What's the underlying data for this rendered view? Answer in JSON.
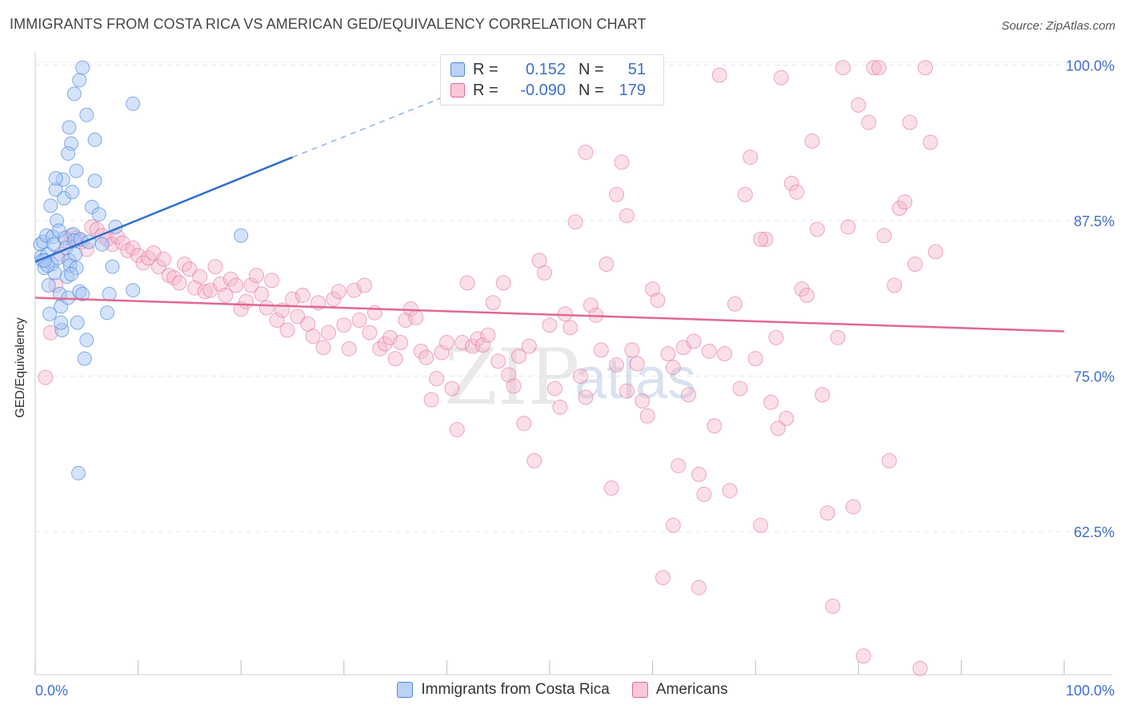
{
  "header": {
    "title": "IMMIGRANTS FROM COSTA RICA VS AMERICAN GED/EQUIVALENCY CORRELATION CHART",
    "source": "Source: ZipAtlas.com"
  },
  "legend": {
    "r_label": "R =",
    "n_label": "N =",
    "rows": [
      {
        "r": "0.152",
        "n": "51"
      },
      {
        "r": "-0.090",
        "n": "179"
      }
    ]
  },
  "watermark": {
    "zip": "ZIP",
    "atlas": "atlas"
  },
  "colors": {
    "blue": "#4a86d9",
    "blue_fill": "#a9c8f3",
    "pink": "#e2688f",
    "pink_fill": "#f5b9ce",
    "tick_label": "#3d6fcf",
    "grid": "#e6e6e6"
  },
  "chart_data": {
    "type": "scatter",
    "title": "IMMIGRANTS FROM COSTA RICA VS AMERICAN GED/EQUIVALENCY CORRELATION CHART",
    "ylabel": "GED/Equivalency",
    "xlabel": "",
    "xlim": [
      0,
      100
    ],
    "ylim": [
      51,
      101
    ],
    "x_tick_labels": [
      "0.0%",
      "100.0%"
    ],
    "y_ticks": [
      62.5,
      75.0,
      87.5,
      100.0
    ],
    "y_tick_labels": [
      "62.5%",
      "75.0%",
      "87.5%",
      "100.0%"
    ],
    "grid": true,
    "legend_position": "bottom",
    "series": [
      {
        "name": "Immigrants from Costa Rica",
        "r": 0.152,
        "n": 51,
        "trend": {
          "x0": 0,
          "y0": 84.2,
          "x1": 25,
          "y1": 92.6,
          "dashed_to_x": 42,
          "dashed_to_y": 98.2
        },
        "points": [
          [
            0.5,
            85.6
          ],
          [
            0.6,
            84.6
          ],
          [
            0.7,
            84.3
          ],
          [
            0.9,
            83.7
          ],
          [
            0.8,
            85.8
          ],
          [
            1.1,
            86.3
          ],
          [
            1.2,
            84.8
          ],
          [
            1.3,
            82.3
          ],
          [
            1.4,
            80.0
          ],
          [
            1.5,
            88.7
          ],
          [
            1.6,
            84.0
          ],
          [
            1.7,
            86.2
          ],
          [
            1.8,
            85.6
          ],
          [
            1.9,
            83.3
          ],
          [
            2.0,
            90.0
          ],
          [
            2.1,
            87.5
          ],
          [
            2.2,
            84.5
          ],
          [
            2.3,
            86.7
          ],
          [
            2.4,
            81.6
          ],
          [
            2.5,
            80.6
          ],
          [
            2.6,
            78.7
          ],
          [
            2.7,
            90.8
          ],
          [
            2.8,
            89.3
          ],
          [
            2.9,
            86.1
          ],
          [
            3.0,
            85.3
          ],
          [
            3.1,
            83.0
          ],
          [
            3.2,
            81.3
          ],
          [
            3.3,
            84.3
          ],
          [
            3.4,
            83.9
          ],
          [
            3.5,
            93.7
          ],
          [
            3.6,
            89.8
          ],
          [
            3.7,
            86.4
          ],
          [
            3.8,
            85.9
          ],
          [
            3.9,
            84.8
          ],
          [
            4.0,
            83.7
          ],
          [
            4.1,
            79.3
          ],
          [
            4.2,
            67.2
          ],
          [
            4.3,
            81.8
          ],
          [
            4.4,
            86.0
          ],
          [
            4.6,
            81.6
          ],
          [
            4.8,
            76.4
          ],
          [
            5.0,
            77.9
          ],
          [
            5.2,
            85.8
          ],
          [
            5.5,
            88.6
          ],
          [
            5.8,
            90.7
          ],
          [
            6.2,
            88.0
          ],
          [
            6.5,
            85.6
          ],
          [
            7.0,
            80.1
          ],
          [
            7.2,
            81.6
          ],
          [
            7.5,
            83.8
          ],
          [
            7.8,
            87.0
          ],
          [
            3.3,
            95.0
          ],
          [
            3.8,
            97.7
          ],
          [
            4.3,
            98.8
          ],
          [
            4.6,
            99.8
          ],
          [
            5.0,
            96.0
          ],
          [
            5.8,
            94.0
          ],
          [
            3.2,
            92.9
          ],
          [
            4.0,
            91.5
          ],
          [
            2.0,
            90.9
          ],
          [
            9.5,
            96.9
          ],
          [
            9.5,
            81.9
          ],
          [
            20.0,
            86.3
          ],
          [
            2.5,
            79.3
          ],
          [
            3.5,
            83.2
          ],
          [
            1.2,
            83.9
          ],
          [
            0.9,
            84.3
          ]
        ]
      },
      {
        "name": "Americans",
        "r": -0.09,
        "n": 179,
        "trend": {
          "x0": 0,
          "y0": 81.3,
          "x1": 100,
          "y1": 78.6
        },
        "points": [
          [
            1,
            74.9
          ],
          [
            1.5,
            78.5
          ],
          [
            2,
            82.3
          ],
          [
            2.5,
            84.8
          ],
          [
            3,
            85.9
          ],
          [
            3.5,
            86.3
          ],
          [
            4,
            86.1
          ],
          [
            4.5,
            85.8
          ],
          [
            5,
            85.2
          ],
          [
            5.5,
            87.0
          ],
          [
            6,
            86.8
          ],
          [
            6.5,
            86.3
          ],
          [
            7,
            86.0
          ],
          [
            7.5,
            85.6
          ],
          [
            8,
            86.2
          ],
          [
            8.5,
            85.7
          ],
          [
            9,
            85.1
          ],
          [
            9.5,
            85.3
          ],
          [
            10,
            84.7
          ],
          [
            10.5,
            84.1
          ],
          [
            11,
            84.5
          ],
          [
            11.5,
            84.9
          ],
          [
            12,
            83.8
          ],
          [
            12.5,
            84.4
          ],
          [
            13,
            83.1
          ],
          [
            13.5,
            82.9
          ],
          [
            14,
            82.5
          ],
          [
            14.5,
            84.0
          ],
          [
            15,
            83.6
          ],
          [
            15.5,
            82.1
          ],
          [
            16,
            83.0
          ],
          [
            16.5,
            81.8
          ],
          [
            17,
            81.9
          ],
          [
            17.5,
            83.8
          ],
          [
            18,
            82.4
          ],
          [
            18.5,
            81.5
          ],
          [
            19,
            82.8
          ],
          [
            19.5,
            82.3
          ],
          [
            20,
            80.4
          ],
          [
            20.5,
            81.0
          ],
          [
            21,
            82.3
          ],
          [
            21.5,
            83.1
          ],
          [
            22,
            81.6
          ],
          [
            22.5,
            80.5
          ],
          [
            23,
            82.7
          ],
          [
            23.5,
            79.5
          ],
          [
            24,
            80.3
          ],
          [
            24.5,
            78.7
          ],
          [
            25,
            81.2
          ],
          [
            25.5,
            79.8
          ],
          [
            26,
            81.5
          ],
          [
            26.5,
            79.2
          ],
          [
            27,
            78.2
          ],
          [
            27.5,
            80.9
          ],
          [
            28,
            77.3
          ],
          [
            28.5,
            78.5
          ],
          [
            29,
            81.2
          ],
          [
            29.5,
            81.8
          ],
          [
            30,
            79.1
          ],
          [
            30.5,
            77.2
          ],
          [
            31,
            81.9
          ],
          [
            31.5,
            79.5
          ],
          [
            32,
            82.3
          ],
          [
            32.5,
            78.5
          ],
          [
            33,
            80.1
          ],
          [
            33.5,
            77.2
          ],
          [
            34,
            77.6
          ],
          [
            34.5,
            78.1
          ],
          [
            35,
            76.4
          ],
          [
            35.5,
            77.7
          ],
          [
            36,
            79.5
          ],
          [
            36.5,
            80.4
          ],
          [
            37,
            79.7
          ],
          [
            37.5,
            77.0
          ],
          [
            38,
            76.5
          ],
          [
            38.5,
            73.1
          ],
          [
            39,
            74.8
          ],
          [
            39.5,
            76.9
          ],
          [
            40,
            77.7
          ],
          [
            40.5,
            74.0
          ],
          [
            41,
            70.7
          ],
          [
            41.5,
            77.7
          ],
          [
            42,
            82.5
          ],
          [
            42.5,
            77.4
          ],
          [
            43,
            78.0
          ],
          [
            43.5,
            77.5
          ],
          [
            44,
            78.3
          ],
          [
            44.5,
            80.9
          ],
          [
            45,
            76.2
          ],
          [
            45.5,
            82.5
          ],
          [
            46,
            75.1
          ],
          [
            46.5,
            74.2
          ],
          [
            47,
            76.6
          ],
          [
            47.5,
            71.2
          ],
          [
            48,
            77.4
          ],
          [
            48.5,
            68.2
          ],
          [
            49,
            84.3
          ],
          [
            49.5,
            83.3
          ],
          [
            50,
            79.1
          ],
          [
            50.5,
            74.0
          ],
          [
            51,
            72.5
          ],
          [
            51.5,
            80.0
          ],
          [
            52,
            78.9
          ],
          [
            52.5,
            87.4
          ],
          [
            53,
            75.0
          ],
          [
            53.5,
            73.3
          ],
          [
            54,
            80.7
          ],
          [
            54.5,
            79.9
          ],
          [
            55,
            77.1
          ],
          [
            55.5,
            84.0
          ],
          [
            56,
            66.0
          ],
          [
            56.5,
            75.9
          ],
          [
            57,
            92.2
          ],
          [
            57.5,
            73.8
          ],
          [
            58,
            77.1
          ],
          [
            58.5,
            76.0
          ],
          [
            59,
            73.0
          ],
          [
            59.5,
            71.8
          ],
          [
            60,
            82.0
          ],
          [
            60.5,
            81.1
          ],
          [
            61,
            58.8
          ],
          [
            61.5,
            76.8
          ],
          [
            62,
            63.0
          ],
          [
            62.5,
            67.8
          ],
          [
            63,
            77.3
          ],
          [
            63.5,
            73.5
          ],
          [
            64,
            77.8
          ],
          [
            64.5,
            67.1
          ],
          [
            65,
            65.5
          ],
          [
            65.5,
            77.0
          ],
          [
            66,
            71.0
          ],
          [
            66.5,
            99.2
          ],
          [
            67,
            76.8
          ],
          [
            67.5,
            65.8
          ],
          [
            68,
            80.8
          ],
          [
            68.5,
            74.0
          ],
          [
            69,
            89.6
          ],
          [
            69.5,
            92.6
          ],
          [
            70,
            76.4
          ],
          [
            70.5,
            63.0
          ],
          [
            71,
            86.0
          ],
          [
            71.5,
            72.9
          ],
          [
            72,
            78.1
          ],
          [
            72.5,
            99.0
          ],
          [
            73,
            71.6
          ],
          [
            73.5,
            90.5
          ],
          [
            74,
            89.8
          ],
          [
            74.5,
            82.0
          ],
          [
            75,
            81.5
          ],
          [
            75.5,
            93.9
          ],
          [
            76,
            86.8
          ],
          [
            76.5,
            73.5
          ],
          [
            77,
            64.0
          ],
          [
            77.5,
            56.5
          ],
          [
            78,
            78.1
          ],
          [
            78.5,
            99.8
          ],
          [
            79,
            87.0
          ],
          [
            79.5,
            64.5
          ],
          [
            80,
            96.8
          ],
          [
            80.5,
            52.5
          ],
          [
            81,
            95.4
          ],
          [
            81.5,
            99.8
          ],
          [
            82,
            99.8
          ],
          [
            82.5,
            86.3
          ],
          [
            83,
            68.2
          ],
          [
            83.5,
            82.3
          ],
          [
            84,
            88.5
          ],
          [
            84.5,
            89.0
          ],
          [
            85,
            95.4
          ],
          [
            85.5,
            84.0
          ],
          [
            86,
            51.5
          ],
          [
            86.5,
            99.8
          ],
          [
            87,
            93.8
          ],
          [
            87.5,
            85.0
          ],
          [
            56.5,
            89.6
          ],
          [
            57.5,
            87.9
          ],
          [
            53.5,
            93.0
          ],
          [
            62,
            75.7
          ],
          [
            64.5,
            58.0
          ],
          [
            70.5,
            86.0
          ],
          [
            72.2,
            70.8
          ]
        ]
      }
    ]
  }
}
